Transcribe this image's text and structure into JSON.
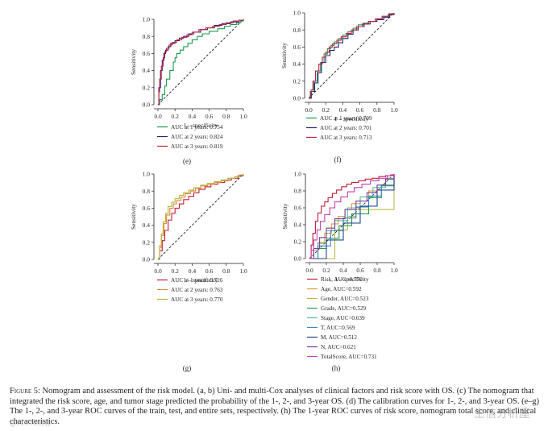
{
  "chart_data": [
    {
      "type": "line",
      "panel_label": "(e)",
      "xlabel": "1 – specificity",
      "ylabel": "Sensitivity",
      "xlim": [
        0,
        1
      ],
      "ylim": [
        0,
        1
      ],
      "x_ticks": [
        "0.0",
        "0.2",
        "0.4",
        "0.6",
        "0.8",
        "1.0"
      ],
      "y_ticks": [
        "0.0",
        "0.2",
        "0.4",
        "0.6",
        "0.8",
        "1.0"
      ],
      "series": [
        {
          "name": "AUC at 1 years: 0.754",
          "color": "#1a9a4a",
          "x": [
            0,
            0.02,
            0.05,
            0.08,
            0.1,
            0.14,
            0.18,
            0.2,
            0.22,
            0.26,
            0.3,
            0.35,
            0.4,
            0.46,
            0.52,
            0.6,
            0.7,
            0.78,
            0.85,
            0.92,
            0.97,
            1
          ],
          "y": [
            0,
            0.06,
            0.12,
            0.22,
            0.3,
            0.4,
            0.5,
            0.55,
            0.6,
            0.64,
            0.68,
            0.72,
            0.76,
            0.8,
            0.83,
            0.86,
            0.89,
            0.92,
            0.94,
            0.96,
            0.98,
            1
          ]
        },
        {
          "name": "AUC at 2 years: 0.824",
          "color": "#24247a",
          "x": [
            0,
            0.01,
            0.03,
            0.05,
            0.07,
            0.09,
            0.12,
            0.15,
            0.2,
            0.25,
            0.3,
            0.36,
            0.42,
            0.5,
            0.58,
            0.66,
            0.75,
            0.85,
            0.95,
            1
          ],
          "y": [
            0,
            0.2,
            0.4,
            0.52,
            0.6,
            0.64,
            0.68,
            0.72,
            0.75,
            0.78,
            0.8,
            0.83,
            0.85,
            0.88,
            0.9,
            0.93,
            0.95,
            0.97,
            0.99,
            1
          ]
        },
        {
          "name": "AUC at 3 years: 0.819",
          "color": "#c4203a",
          "x": [
            0,
            0.01,
            0.02,
            0.04,
            0.06,
            0.08,
            0.1,
            0.13,
            0.17,
            0.22,
            0.28,
            0.34,
            0.4,
            0.48,
            0.56,
            0.64,
            0.72,
            0.8,
            0.88,
            0.95,
            1
          ],
          "y": [
            0,
            0.15,
            0.3,
            0.45,
            0.55,
            0.62,
            0.66,
            0.7,
            0.73,
            0.76,
            0.79,
            0.82,
            0.85,
            0.88,
            0.9,
            0.92,
            0.94,
            0.96,
            0.98,
            0.99,
            1
          ]
        }
      ]
    },
    {
      "type": "line",
      "panel_label": "(f)",
      "xlabel": "1 – specificity",
      "ylabel": "Sensitivity",
      "xlim": [
        0,
        1
      ],
      "ylim": [
        0,
        1
      ],
      "x_ticks": [
        "0.0",
        "0.2",
        "0.4",
        "0.6",
        "0.8",
        "1.0"
      ],
      "y_ticks": [
        "0.0",
        "0.2",
        "0.4",
        "0.6",
        "0.8",
        "1.0"
      ],
      "series": [
        {
          "name": "AUC at 1 years: 0.709",
          "color": "#1a9a4a",
          "x": [
            0,
            0.03,
            0.06,
            0.1,
            0.14,
            0.18,
            0.22,
            0.26,
            0.3,
            0.35,
            0.4,
            0.46,
            0.52,
            0.58,
            0.64,
            0.7,
            0.78,
            0.86,
            0.93,
            1
          ],
          "y": [
            0,
            0.1,
            0.2,
            0.32,
            0.42,
            0.52,
            0.58,
            0.62,
            0.66,
            0.7,
            0.74,
            0.78,
            0.82,
            0.86,
            0.88,
            0.9,
            0.93,
            0.95,
            0.98,
            1
          ]
        },
        {
          "name": "AUC at 2 years: 0.701",
          "color": "#24247a",
          "x": [
            0,
            0.03,
            0.07,
            0.11,
            0.15,
            0.2,
            0.25,
            0.3,
            0.35,
            0.4,
            0.46,
            0.52,
            0.58,
            0.65,
            0.72,
            0.8,
            0.88,
            0.95,
            1
          ],
          "y": [
            0,
            0.08,
            0.18,
            0.3,
            0.42,
            0.5,
            0.56,
            0.6,
            0.65,
            0.7,
            0.75,
            0.8,
            0.84,
            0.87,
            0.9,
            0.92,
            0.95,
            0.98,
            1
          ]
        },
        {
          "name": "AUC at 3 years: 0.713",
          "color": "#c4203a",
          "x": [
            0,
            0.02,
            0.05,
            0.08,
            0.12,
            0.16,
            0.2,
            0.24,
            0.28,
            0.33,
            0.38,
            0.44,
            0.5,
            0.56,
            0.63,
            0.7,
            0.78,
            0.86,
            0.94,
            1
          ],
          "y": [
            0,
            0.08,
            0.2,
            0.32,
            0.4,
            0.48,
            0.54,
            0.6,
            0.64,
            0.68,
            0.72,
            0.76,
            0.8,
            0.84,
            0.87,
            0.9,
            0.93,
            0.96,
            0.99,
            1
          ]
        }
      ]
    },
    {
      "type": "line",
      "panel_label": "(g)",
      "xlabel": "1 – specificity",
      "ylabel": "Sensitivity",
      "xlim": [
        0,
        1
      ],
      "ylim": [
        0,
        1
      ],
      "x_ticks": [
        "0.0",
        "0.2",
        "0.4",
        "0.6",
        "0.8",
        "1.0"
      ],
      "y_ticks": [
        "0.0",
        "0.2",
        "0.4",
        "0.6",
        "0.8",
        "1.0"
      ],
      "series": [
        {
          "name": "AUC at 1 years: 0.726",
          "color": "#c4203a",
          "x": [
            0,
            0.02,
            0.05,
            0.08,
            0.12,
            0.16,
            0.2,
            0.25,
            0.3,
            0.36,
            0.42,
            0.48,
            0.55,
            0.62,
            0.7,
            0.78,
            0.86,
            0.94,
            1
          ],
          "y": [
            0,
            0.1,
            0.22,
            0.34,
            0.46,
            0.54,
            0.6,
            0.65,
            0.7,
            0.74,
            0.78,
            0.82,
            0.85,
            0.88,
            0.9,
            0.93,
            0.95,
            0.98,
            1
          ]
        },
        {
          "name": "AUC at 2 years: 0.763",
          "color": "#e08a3a",
          "x": [
            0,
            0.02,
            0.04,
            0.07,
            0.1,
            0.14,
            0.18,
            0.22,
            0.27,
            0.32,
            0.38,
            0.44,
            0.5,
            0.58,
            0.66,
            0.74,
            0.82,
            0.9,
            0.96,
            1
          ],
          "y": [
            0,
            0.14,
            0.28,
            0.42,
            0.52,
            0.6,
            0.65,
            0.69,
            0.73,
            0.77,
            0.8,
            0.83,
            0.86,
            0.88,
            0.9,
            0.92,
            0.95,
            0.97,
            0.99,
            1
          ]
        },
        {
          "name": "AUC at 3 years: 0.770",
          "color": "#b9b23a",
          "x": [
            0,
            0.02,
            0.04,
            0.06,
            0.09,
            0.12,
            0.16,
            0.2,
            0.25,
            0.3,
            0.36,
            0.42,
            0.5,
            0.58,
            0.66,
            0.74,
            0.82,
            0.9,
            0.96,
            1
          ],
          "y": [
            0,
            0.16,
            0.3,
            0.44,
            0.54,
            0.62,
            0.67,
            0.71,
            0.75,
            0.78,
            0.81,
            0.84,
            0.87,
            0.89,
            0.91,
            0.93,
            0.95,
            0.97,
            0.99,
            1
          ]
        }
      ]
    },
    {
      "type": "line",
      "panel_label": "(h)",
      "xlabel": "1 – specificity",
      "ylabel": "Sensitivity",
      "xlim": [
        0,
        1
      ],
      "ylim": [
        0,
        1
      ],
      "x_ticks": [
        "0.0",
        "0.2",
        "0.4",
        "0.6",
        "0.8",
        "1.0"
      ],
      "y_ticks": [
        "0.0",
        "0.2",
        "0.4",
        "0.6",
        "0.8",
        "1.0"
      ],
      "series": [
        {
          "name": "Risk, AUC=0.770",
          "color": "#c4203a",
          "x": [
            0,
            0.02,
            0.04,
            0.07,
            0.1,
            0.14,
            0.18,
            0.22,
            0.27,
            0.32,
            0.38,
            0.44,
            0.5,
            0.58,
            0.66,
            0.74,
            0.82,
            0.9,
            0.96,
            1
          ],
          "y": [
            0,
            0.16,
            0.3,
            0.44,
            0.54,
            0.62,
            0.67,
            0.72,
            0.77,
            0.81,
            0.85,
            0.88,
            0.9,
            0.92,
            0.94,
            0.95,
            0.97,
            0.98,
            0.99,
            1
          ]
        },
        {
          "name": "Age, AUC=0.592",
          "color": "#e39a3f",
          "x": [
            0,
            0.05,
            0.1,
            0.18,
            0.26,
            0.34,
            0.42,
            0.5,
            0.6,
            0.7,
            0.8,
            0.9,
            1
          ],
          "y": [
            0,
            0.1,
            0.19,
            0.3,
            0.41,
            0.5,
            0.58,
            0.65,
            0.73,
            0.8,
            0.87,
            0.94,
            1
          ]
        },
        {
          "name": "Gender, AUC=0.523",
          "color": "#bdb74a",
          "x": [
            0,
            0.3,
            0.45,
            0.55,
            1
          ],
          "y": [
            0,
            0.34,
            0.5,
            0.58,
            1
          ]
        },
        {
          "name": "Grade, AUC=0.529",
          "color": "#2f9a4e",
          "x": [
            0,
            0.1,
            0.2,
            0.35,
            0.5,
            0.7,
            0.85,
            1
          ],
          "y": [
            0,
            0.12,
            0.24,
            0.39,
            0.53,
            0.72,
            0.86,
            1
          ]
        },
        {
          "name": "Stage, AUC=0.639",
          "color": "#58c09e",
          "x": [
            0,
            0.1,
            0.2,
            0.3,
            0.45,
            0.6,
            0.75,
            0.9,
            1
          ],
          "y": [
            0,
            0.18,
            0.33,
            0.45,
            0.6,
            0.73,
            0.84,
            0.95,
            1
          ]
        },
        {
          "name": "T, AUC=0.569",
          "color": "#3f86c8",
          "x": [
            0,
            0.1,
            0.25,
            0.4,
            0.55,
            0.7,
            0.85,
            1
          ],
          "y": [
            0,
            0.15,
            0.33,
            0.48,
            0.61,
            0.74,
            0.87,
            1
          ]
        },
        {
          "name": "M, AUC=0.512",
          "color": "#234a8c",
          "x": [
            0,
            0.2,
            0.4,
            0.6,
            0.8,
            1
          ],
          "y": [
            0,
            0.22,
            0.42,
            0.62,
            0.81,
            1
          ]
        },
        {
          "name": "N, AUC=0.621",
          "color": "#7a3fa0",
          "x": [
            0,
            0.05,
            0.12,
            0.2,
            0.3,
            0.42,
            0.55,
            0.68,
            0.8,
            0.9,
            1
          ],
          "y": [
            0,
            0.12,
            0.25,
            0.36,
            0.47,
            0.58,
            0.68,
            0.78,
            0.87,
            0.94,
            1
          ]
        },
        {
          "name": "TotalScore, AUC=0.731",
          "color": "#c43fb0",
          "x": [
            0,
            0.02,
            0.05,
            0.09,
            0.13,
            0.18,
            0.24,
            0.3,
            0.37,
            0.45,
            0.53,
            0.62,
            0.72,
            0.82,
            0.92,
            1
          ],
          "y": [
            0,
            0.1,
            0.22,
            0.34,
            0.44,
            0.52,
            0.6,
            0.67,
            0.73,
            0.79,
            0.84,
            0.88,
            0.92,
            0.95,
            0.98,
            1
          ]
        }
      ]
    }
  ],
  "caption": {
    "label": "Figure 5:",
    "text": "Nomogram and assessment of the risk model. (a, b) Uni- and multi-Cox analyses of clinical factors and risk score with OS. (c) The nomogram that integrated the risk score, age, and tumor stage predicted the probability of the 1-, 2-, and 3-year OS. (d) The calibration curves for 1-, 2-, and 3-year OS. (e–g) The 1-, 2-, and 3-year ROC curves of the train, test, and entire sets, respectively. (h) The 1-year ROC curves of risk score, nomogram total score, and clinical characteristics."
  },
  "watermark": "生信分析屋",
  "watermark_small": "@51CTO博客"
}
